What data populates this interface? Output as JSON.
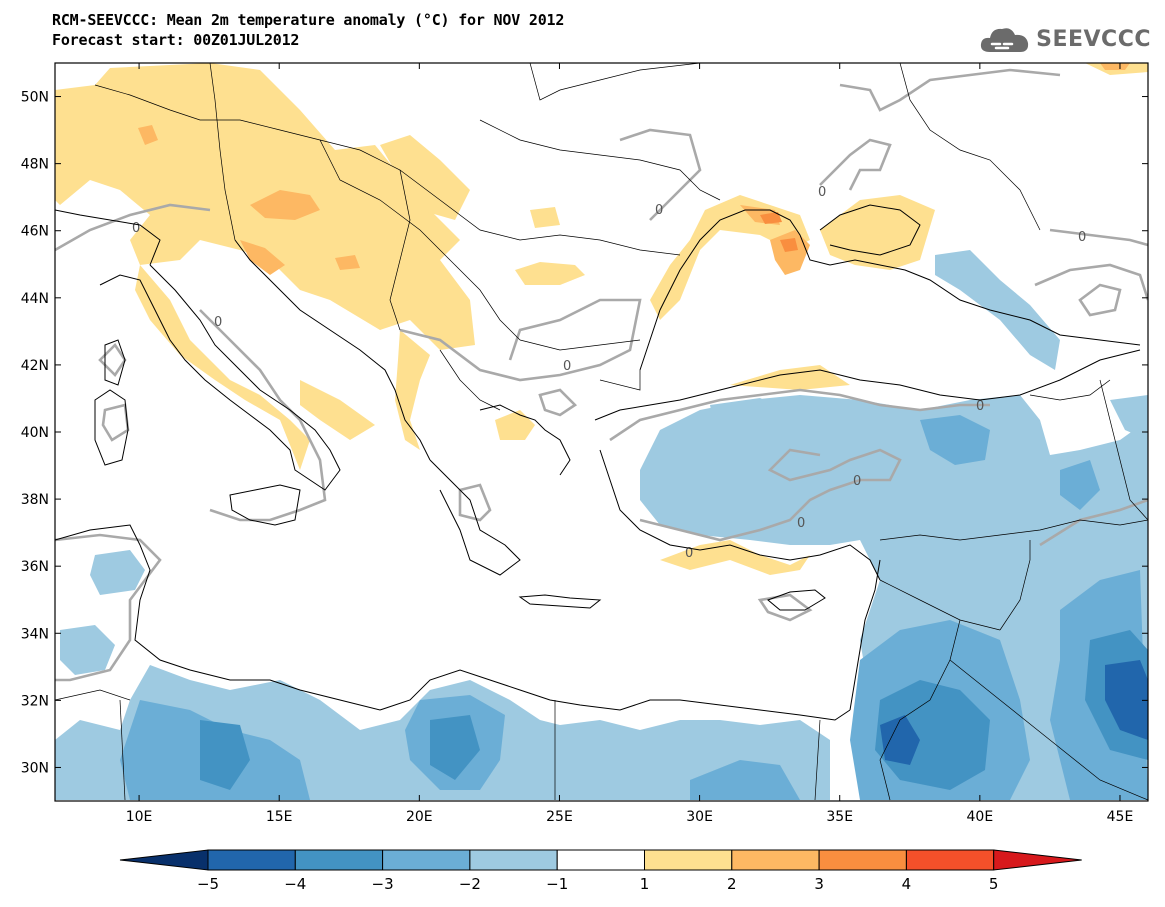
{
  "header": {
    "title": "RCM-SEEVCCC: Mean 2m temperature anomaly (°C) for NOV 2012",
    "subtitle": "Forecast start: 00Z01JUL2012",
    "logo_text": "SEEVCCC"
  },
  "map": {
    "lon_range": [
      7,
      46
    ],
    "lat_range": [
      29,
      51
    ],
    "lon_ticks": [
      "10E",
      "15E",
      "20E",
      "25E",
      "30E",
      "35E",
      "40E",
      "45E"
    ],
    "lat_ticks": [
      "50N",
      "48N",
      "46N",
      "44N",
      "42N",
      "40N",
      "38N",
      "36N",
      "34N",
      "32N",
      "30N"
    ],
    "contour_label": "0"
  },
  "colorbar": {
    "levels": [
      "-5",
      "-4",
      "-3",
      "-2",
      "-1",
      "1",
      "2",
      "3",
      "4",
      "5"
    ],
    "colors": [
      "#08306b",
      "#2166ac",
      "#4393c3",
      "#6baed6",
      "#9ecae1",
      "#ffffff",
      "#fee090",
      "#fdb863",
      "#f98e3f",
      "#f4502a",
      "#d7191c"
    ]
  }
}
